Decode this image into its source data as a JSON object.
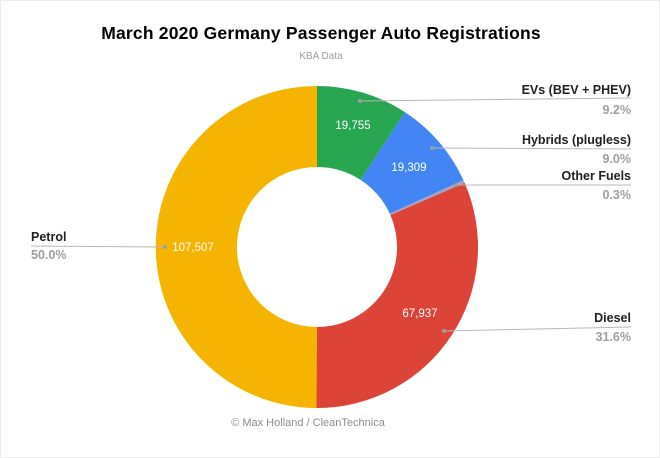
{
  "header": {
    "title": "March 2020 Germany Passenger Auto Registrations",
    "subtitle": "KBA Data"
  },
  "footer": {
    "credit": "© Max Holland / CleanTechnica"
  },
  "chart_data": {
    "type": "pie",
    "donut": true,
    "title": "March 2020 Germany Passenger Auto Registrations",
    "subtitle": "KBA Data",
    "direction": "clockwise",
    "start_angle_deg": 0,
    "legend_position": "callouts",
    "series": [
      {
        "label": "EVs (BEV + PHEV)",
        "value": 19755,
        "value_display": "19,755",
        "pct": 9.2,
        "pct_display": "9.2%",
        "color": "#28A550",
        "value_text_color": "#ffffff"
      },
      {
        "label": "Hybrids (plugless)",
        "value": 19309,
        "value_display": "19,309",
        "pct": 9.0,
        "pct_display": "9.0%",
        "color": "#4285F4",
        "value_text_color": "#ffffff"
      },
      {
        "label": "Other Fuels",
        "value": null,
        "value_display": "",
        "pct": 0.3,
        "pct_display": "0.3%",
        "color": "#AAA0C8",
        "value_text_color": "#ffffff"
      },
      {
        "label": "Diesel",
        "value": 67937,
        "value_display": "67,937",
        "pct": 31.6,
        "pct_display": "31.6%",
        "color": "#DB4437",
        "value_text_color": "#ffffff"
      },
      {
        "label": "Petrol",
        "value": 107507,
        "value_display": "107,507",
        "pct": 50.0,
        "pct_display": "50.0%",
        "color": "#F4B400",
        "value_text_color": "#1a1a1a"
      }
    ]
  }
}
